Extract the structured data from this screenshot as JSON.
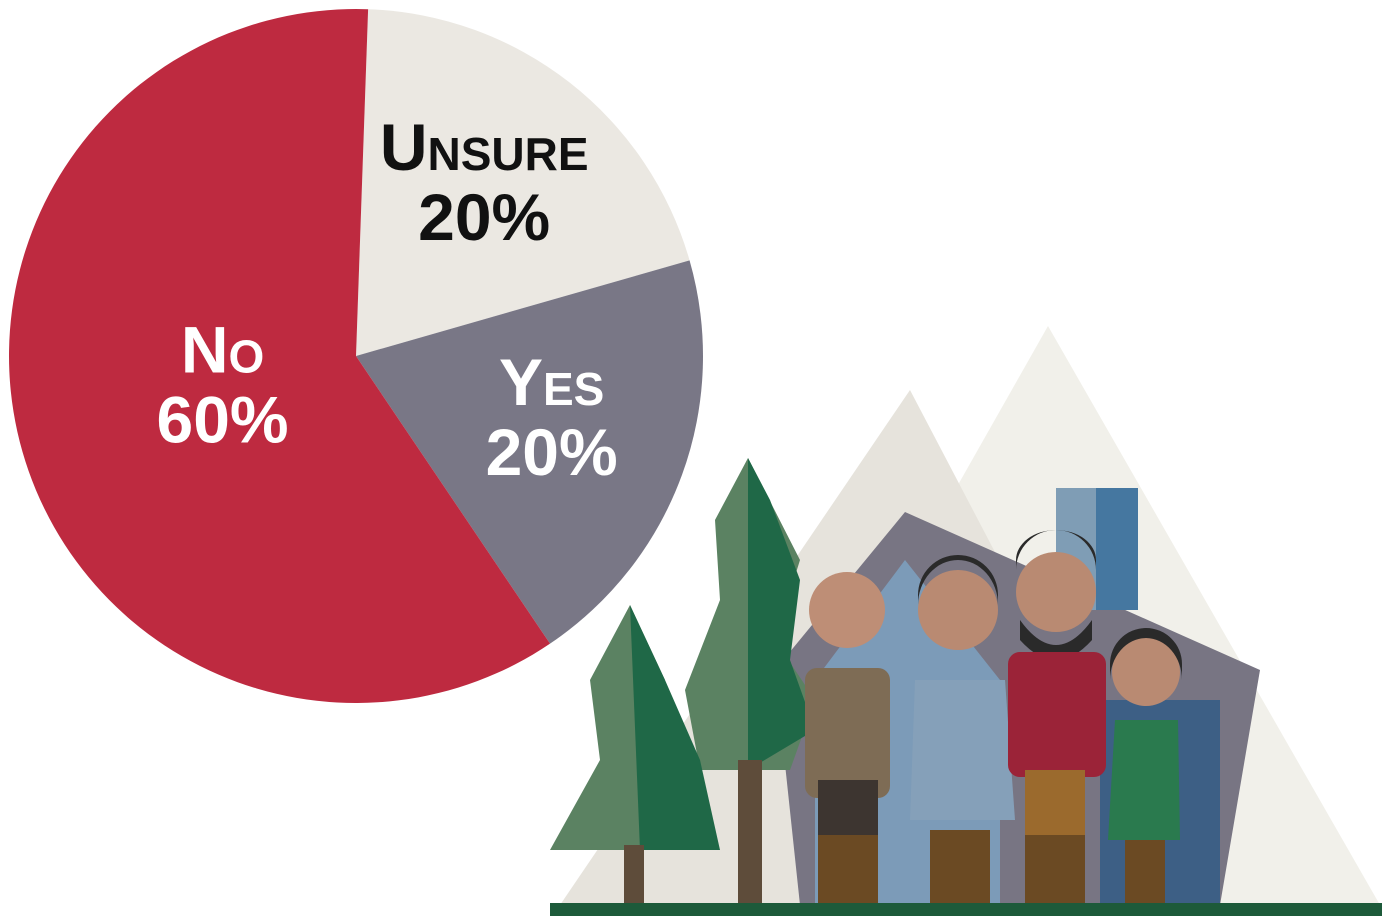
{
  "chart_data": {
    "type": "pie",
    "categories": [
      "Unsure",
      "Yes",
      "No"
    ],
    "values": [
      20,
      20,
      60
    ],
    "value_labels": [
      "20%",
      "20%",
      "60%"
    ],
    "colors": [
      "#ebe8e2",
      "#797786",
      "#be2a40"
    ],
    "label_colors": [
      "#111111",
      "#ffffff",
      "#ffffff"
    ]
  }
}
